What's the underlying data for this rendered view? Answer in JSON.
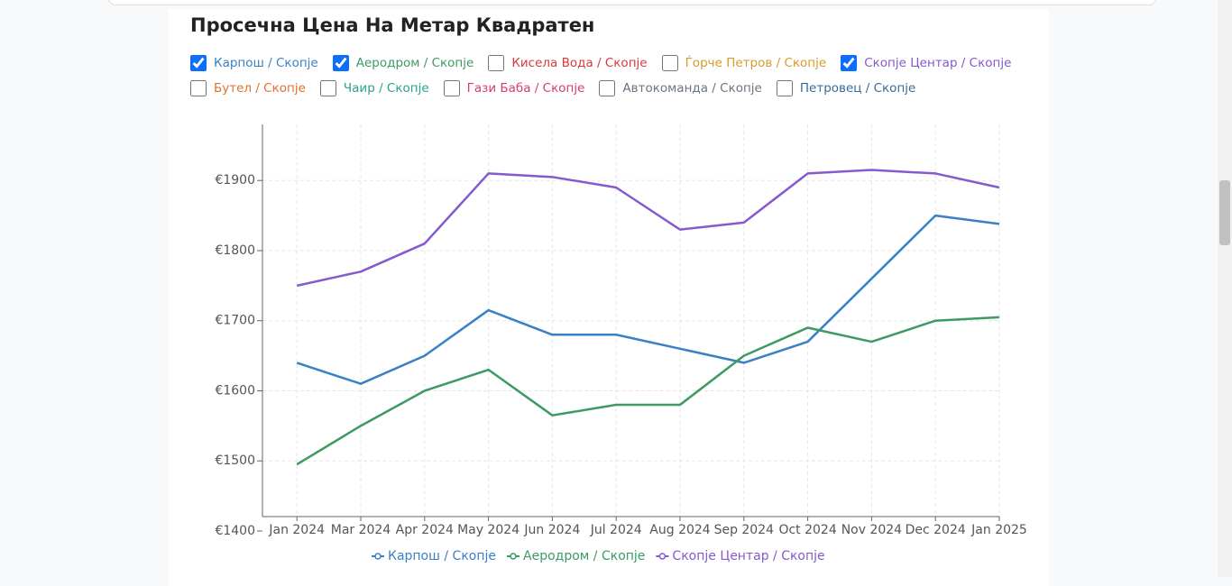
{
  "title": "Просечна Цена На Метар Квадратен",
  "filters": [
    {
      "label": "Карпош / Скопје",
      "checked": true,
      "color": "#3a80c5"
    },
    {
      "label": "Аеродром / Скопје",
      "checked": true,
      "color": "#3d9a62"
    },
    {
      "label": "Кисела Вода / Скопје",
      "checked": false,
      "color": "#d63a3a"
    },
    {
      "label": "Ѓорче Петров / Скопје",
      "checked": false,
      "color": "#d89a2a"
    },
    {
      "label": "Скопје Центар / Скопје",
      "checked": true,
      "color": "#8659cf"
    },
    {
      "label": "Бутел / Скопје",
      "checked": false,
      "color": "#e07030"
    },
    {
      "label": "Чаир / Скопје",
      "checked": false,
      "color": "#2aa090"
    },
    {
      "label": "Гази Баба / Скопје",
      "checked": false,
      "color": "#d63a7a"
    },
    {
      "label": "Автокоманда / Скопје",
      "checked": false,
      "color": "#6a7580"
    },
    {
      "label": "Петровец / Скопје",
      "checked": false,
      "color": "#3a6a9a"
    }
  ],
  "chart_data": {
    "type": "line",
    "x": [
      "Jan 2024",
      "Mar 2024",
      "Apr 2024",
      "May 2024",
      "Jun 2024",
      "Jul 2024",
      "Aug 2024",
      "Sep 2024",
      "Oct 2024",
      "Nov 2024",
      "Dec 2024",
      "Jan 2025"
    ],
    "series": [
      {
        "name": "Карпош / Скопје",
        "color": "#3a80c5",
        "values": [
          1640,
          1610,
          1650,
          1715,
          1680,
          1680,
          1660,
          1640,
          1670,
          1760,
          1850,
          1838
        ]
      },
      {
        "name": "Аеродром / Скопје",
        "color": "#3d9a62",
        "values": [
          1495,
          1550,
          1600,
          1630,
          1565,
          1580,
          1580,
          1650,
          1690,
          1670,
          1700,
          1705
        ]
      },
      {
        "name": "Скопје Центар / Скопје",
        "color": "#8659cf",
        "values": [
          1750,
          1770,
          1810,
          1910,
          1905,
          1890,
          1830,
          1840,
          1910,
          1915,
          1910,
          1890
        ]
      }
    ],
    "ylim": [
      1400,
      1980
    ],
    "yticks": [
      {
        "value": 1400,
        "label": "€1400"
      },
      {
        "value": 1500,
        "label": "€1500"
      },
      {
        "value": 1600,
        "label": "€1600"
      },
      {
        "value": 1700,
        "label": "€1700"
      },
      {
        "value": 1800,
        "label": "€1800"
      },
      {
        "value": 1900,
        "label": "€1900"
      }
    ],
    "grid": true
  }
}
